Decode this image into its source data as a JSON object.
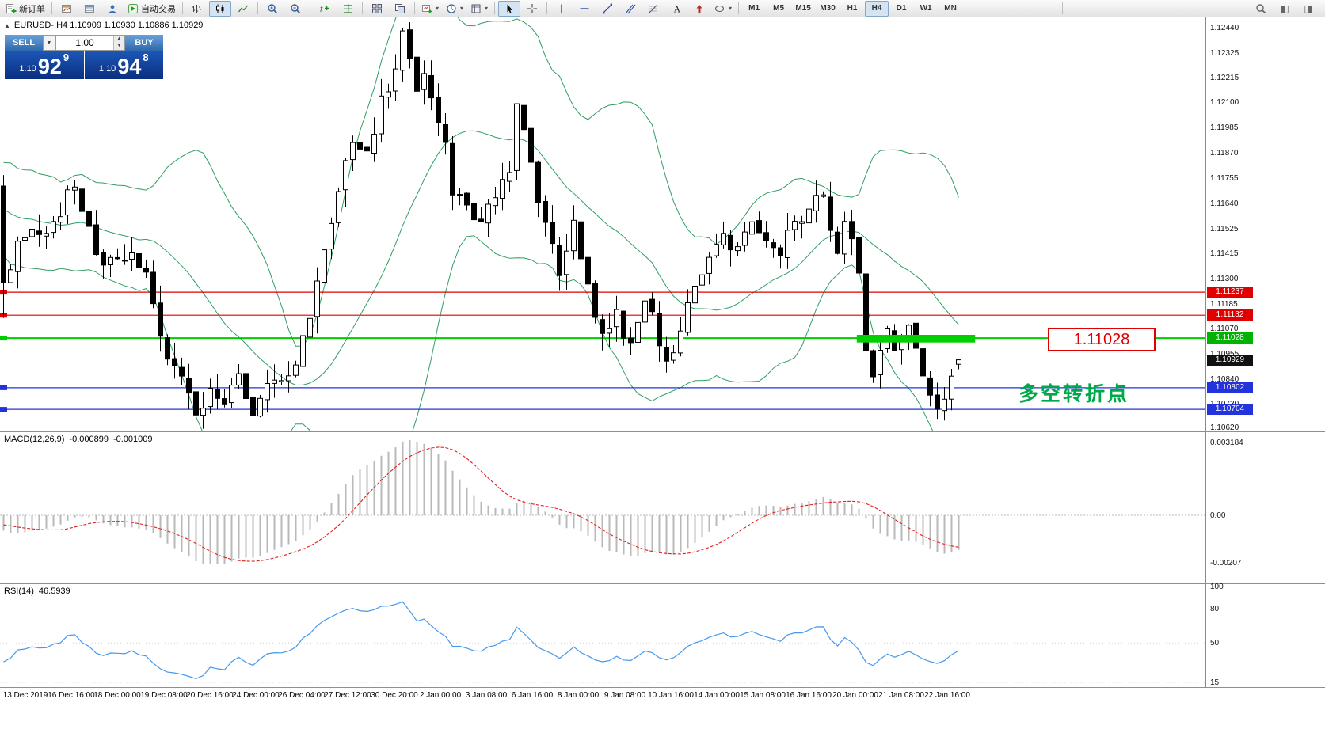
{
  "toolbar": {
    "new_order": "新订单",
    "auto_trading": "自动交易",
    "timeframe_label_group": [
      "M1",
      "M5",
      "M15",
      "M30",
      "H1",
      "H4",
      "D1",
      "W1",
      "MN"
    ],
    "active_timeframe": "H4"
  },
  "chart": {
    "symbol_info": "EURUSD-,H4 1.10909 1.10930 1.10886 1.10929",
    "one_click": {
      "sell_label": "SELL",
      "buy_label": "BUY",
      "volume": "1.00",
      "sell_price_small": "1.10",
      "sell_price_main": "92",
      "sell_price_sup": "9",
      "buy_price_small": "1.10",
      "buy_price_main": "94",
      "buy_price_sup": "8"
    },
    "y_axis_labels": [
      "1.12440",
      "1.12325",
      "1.12215",
      "1.12100",
      "1.11985",
      "1.11870",
      "1.11755",
      "1.11640",
      "1.11525",
      "1.11415",
      "1.11300",
      "1.11185",
      "1.11070",
      "1.10955",
      "1.10840",
      "1.10730",
      "1.10620"
    ],
    "price_tags": [
      {
        "text": "1.11237",
        "value": 1.11237,
        "color": "#e00000"
      },
      {
        "text": "1.11132",
        "value": 1.11132,
        "color": "#e00000"
      },
      {
        "text": "1.11028",
        "value": 1.11028,
        "color": "#00b300"
      },
      {
        "text": "1.10929",
        "value": 1.10929,
        "color": "#111111"
      },
      {
        "text": "1.10802",
        "value": 1.10802,
        "color": "#2233dd"
      },
      {
        "text": "1.10704",
        "value": 1.10704,
        "color": "#2233dd"
      }
    ],
    "annotations": {
      "price_callout": "1.11028",
      "note": "多空转折点"
    },
    "last_bar": {
      "open": 1.10909,
      "high": 1.1093,
      "low": 1.10886,
      "close": 1.10929
    }
  },
  "macd": {
    "label": "MACD(12,26,9)",
    "value_main": "-0.000899",
    "value_signal": "-0.001009",
    "scale": [
      {
        "text": "0.003184",
        "value": 0.003184
      },
      {
        "text": "0.00",
        "value": 0
      },
      {
        "text": "-0.00207",
        "value": -0.00207
      }
    ]
  },
  "rsi": {
    "label": "RSI(14)",
    "value": "46.5939",
    "scale": [
      {
        "text": "100",
        "value": 100
      },
      {
        "text": "80",
        "value": 80
      },
      {
        "text": "50",
        "value": 50
      },
      {
        "text": "15",
        "value": 15
      }
    ],
    "levels": [
      80,
      50,
      15
    ]
  },
  "time_axis": [
    "13 Dec 2019",
    "16 Dec 16:00",
    "18 Dec 00:00",
    "19 Dec 08:00",
    "20 Dec 16:00",
    "24 Dec 00:00",
    "26 Dec 04:00",
    "27 Dec 12:00",
    "30 Dec 20:00",
    "2 Jan 00:00",
    "3 Jan 08:00",
    "6 Jan 16:00",
    "8 Jan 00:00",
    "9 Jan 08:00",
    "10 Jan 16:00",
    "14 Jan 00:00",
    "15 Jan 08:00",
    "16 Jan 16:00",
    "20 Jan 00:00",
    "21 Jan 08:00",
    "22 Jan 16:00"
  ],
  "chart_data": {
    "type": "candlestick",
    "symbol": "EURUSD",
    "timeframe": "H4",
    "bars_rendered": 135,
    "indicators": [
      "Bollinger Bands(20,2)",
      "MACD(12,26,9)",
      "RSI(14)"
    ],
    "y_axis_range": [
      1.10604,
      1.12487
    ],
    "level_lines": [
      {
        "price": 1.11237,
        "color": "#e00000"
      },
      {
        "price": 1.11132,
        "color": "#e00000"
      },
      {
        "price": 1.11028,
        "color": "#00cc00"
      },
      {
        "price": 1.10802,
        "color": "#2233dd"
      },
      {
        "price": 1.10704,
        "color": "#2233dd"
      }
    ],
    "zone": {
      "bar_start": 119.7,
      "bar_end": 136.3,
      "price_top": 1.11043,
      "price_bottom": 1.11008,
      "color": "#00cf00"
    },
    "price_path": [
      [
        0,
        1.1128
      ],
      [
        2,
        1.1146
      ],
      [
        5,
        1.1151
      ],
      [
        8,
        1.1161
      ],
      [
        10,
        1.1173
      ],
      [
        12,
        1.1152
      ],
      [
        14,
        1.1136
      ],
      [
        17,
        1.1142
      ],
      [
        20,
        1.1129
      ],
      [
        23,
        1.1097
      ],
      [
        25,
        1.1083
      ],
      [
        27,
        1.1066
      ],
      [
        29,
        1.1079
      ],
      [
        31,
        1.1073
      ],
      [
        33,
        1.1083
      ],
      [
        35,
        1.1064
      ],
      [
        37,
        1.1079
      ],
      [
        39,
        1.1083
      ],
      [
        41,
        1.109
      ],
      [
        43,
        1.1112
      ],
      [
        45,
        1.1141
      ],
      [
        47,
        1.1166
      ],
      [
        49,
        1.1196
      ],
      [
        51,
        1.1186
      ],
      [
        53,
        1.1212
      ],
      [
        55,
        1.1224
      ],
      [
        56,
        1.1239
      ],
      [
        57,
        1.1226
      ],
      [
        58,
        1.1213
      ],
      [
        59,
        1.1223
      ],
      [
        60,
        1.1209
      ],
      [
        62,
        1.1191
      ],
      [
        63,
        1.1172
      ],
      [
        65,
        1.1163
      ],
      [
        67,
        1.1156
      ],
      [
        69,
        1.1169
      ],
      [
        71,
        1.1174
      ],
      [
        72,
        1.1206
      ],
      [
        74,
        1.1181
      ],
      [
        76,
        1.1156
      ],
      [
        78,
        1.1131
      ],
      [
        80,
        1.1153
      ],
      [
        82,
        1.1126
      ],
      [
        84,
        1.1106
      ],
      [
        86,
        1.1113
      ],
      [
        88,
        1.1099
      ],
      [
        90,
        1.1119
      ],
      [
        92,
        1.1103
      ],
      [
        93,
        1.1089
      ],
      [
        95,
        1.1106
      ],
      [
        97,
        1.1129
      ],
      [
        99,
        1.1136
      ],
      [
        101,
        1.1151
      ],
      [
        103,
        1.1143
      ],
      [
        105,
        1.1156
      ],
      [
        107,
        1.1149
      ],
      [
        109,
        1.1143
      ],
      [
        111,
        1.1156
      ],
      [
        113,
        1.1163
      ],
      [
        115,
        1.1171
      ],
      [
        116,
        1.1149
      ],
      [
        117,
        1.1141
      ],
      [
        118,
        1.1153
      ],
      [
        119,
        1.1146
      ],
      [
        120,
        1.1131
      ],
      [
        121,
        1.1101
      ],
      [
        122,
        1.1089
      ],
      [
        123,
        1.1099
      ],
      [
        124,
        1.1106
      ],
      [
        125,
        1.1096
      ],
      [
        126,
        1.1103
      ],
      [
        127,
        1.1109
      ],
      [
        128,
        1.1096
      ],
      [
        129,
        1.1086
      ],
      [
        130,
        1.1081
      ],
      [
        131,
        1.1073
      ],
      [
        132,
        1.1079
      ],
      [
        133,
        1.1087
      ],
      [
        134,
        1.10929
      ]
    ]
  }
}
